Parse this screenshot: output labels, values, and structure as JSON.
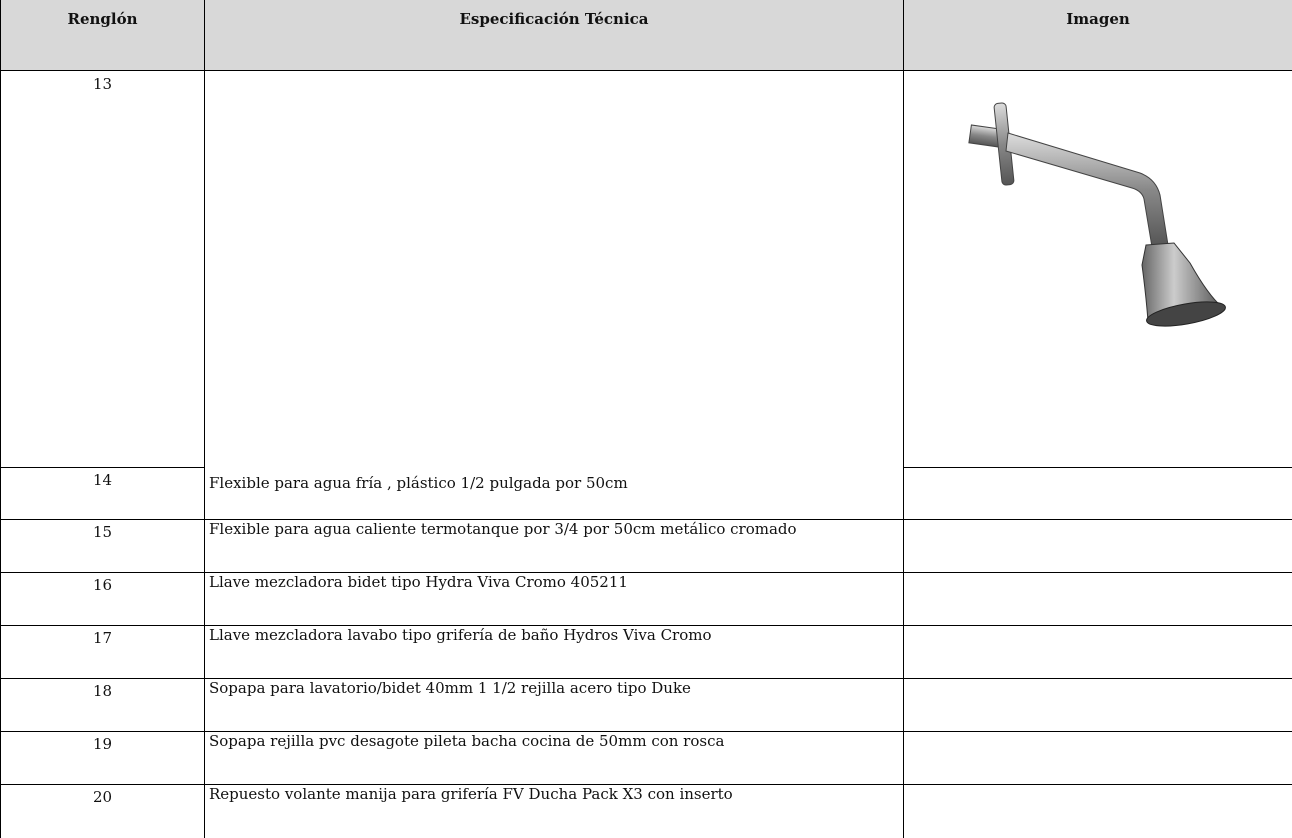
{
  "table": {
    "headers": [
      "Renglón",
      "Especificación Técnica",
      "Imagen"
    ],
    "rows": [
      {
        "number": "13"
      },
      {
        "number": "14",
        "spec": "Flexible para agua fría , plástico 1/2 pulgada por 50cm"
      },
      {
        "number": "15",
        "spec": "Flexible para agua caliente  termotanque por 3/4 por 50cm metálico cromado"
      },
      {
        "number": "16",
        "spec": "Llave mezcladora bidet tipo Hydra Viva Cromo 405211"
      },
      {
        "number": "17",
        "spec": "Llave mezcladora lavabo tipo grifería de baño Hydros Viva Cromo"
      },
      {
        "number": "18",
        "spec": "Sopapa para lavatorio/bidet 40mm 1 1/2 rejilla acero tipo Duke"
      },
      {
        "number": "19",
        "spec": "Sopapa rejilla pvc desagote pileta bacha cocina de 50mm con rosca"
      },
      {
        "number": "20",
        "spec": "Repuesto volante manija para grifería FV Ducha Pack X3 con inserto"
      }
    ]
  }
}
